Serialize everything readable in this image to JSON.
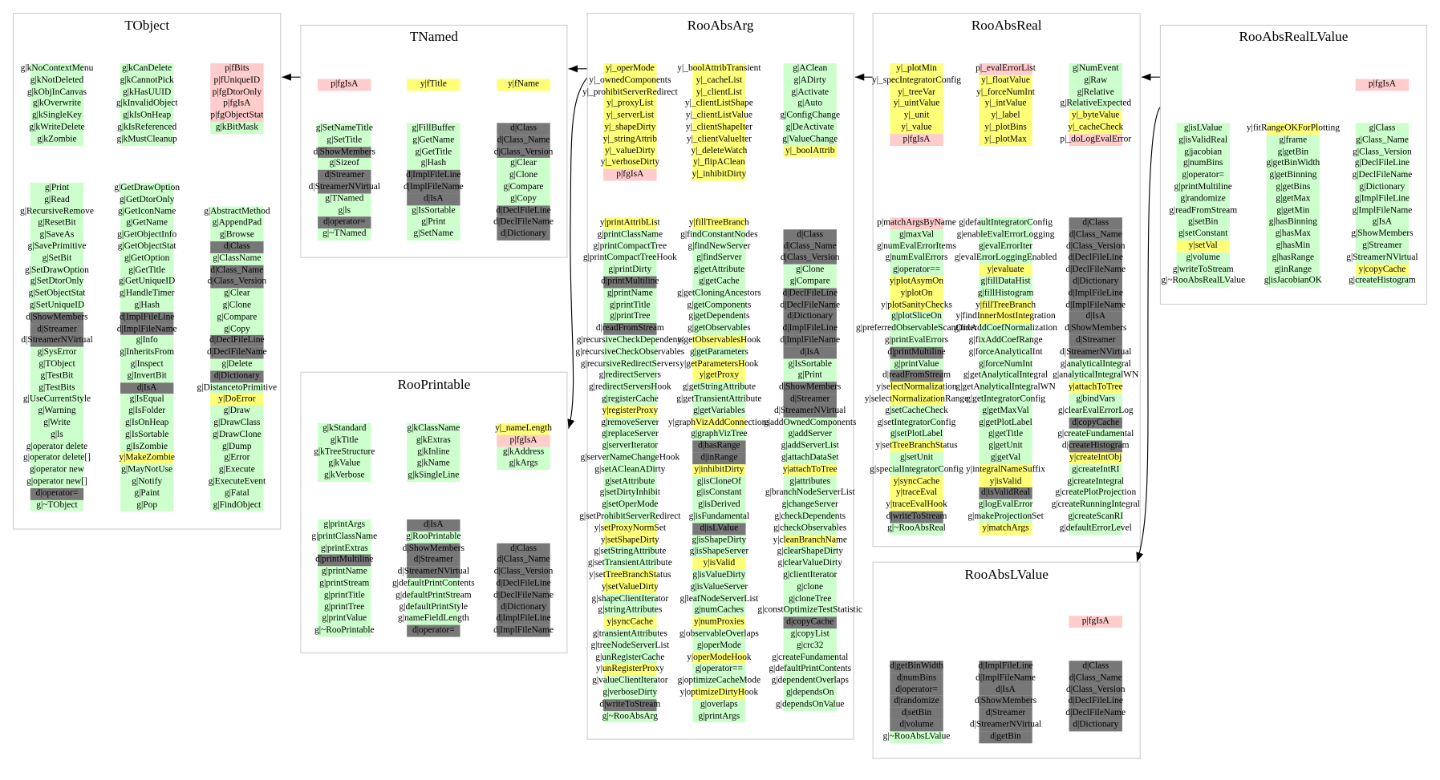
{
  "legend_colors": {
    "g": "#ccffcc",
    "y": "#ffff77",
    "p": "#ffcccc",
    "d": "#777777"
  },
  "classes": [
    {
      "title": "TObject",
      "groups": [
        {
          "cols": [
            [
              "g|kNoContextMenu",
              "g|kNotDeleted",
              "g|kObjInCanvas",
              "g|kOverwrite",
              "g|kSingleKey",
              "g|kWriteDelete",
              "g|kZombie"
            ],
            [
              "g|kCanDelete",
              "g|kCannotPick",
              "g|kHasUUID",
              "g|kInvalidObject",
              "g|kIsOnHeap",
              "g|kIsReferenced",
              "g|kMustCleanup"
            ],
            [
              "p|fBits",
              "p|fUniqueID",
              "p|fgDtorOnly",
              "p|fgIsA",
              "p|fgObjectStat",
              "g|kBitMask"
            ]
          ]
        },
        {
          "cols": [
            [
              "g|Print",
              "g|Read",
              "g|RecursiveRemove",
              "g|ResetBit",
              "g|SaveAs",
              "g|SavePrimitive",
              "g|SetBit",
              "g|SetDrawOption",
              "g|SetDtorOnly",
              "g|SetObjectStat",
              "g|SetUniqueID",
              "d|ShowMembers",
              "d|Streamer",
              "d|StreamerNVirtual",
              "g|SysError",
              "g|TObject",
              "g|TestBit",
              "g|TestBits",
              "g|UseCurrentStyle",
              "g|Warning",
              "g|Write",
              "g|ls",
              "g|operator delete",
              "g|operator delete[]",
              "g|operator new",
              "g|operator new[]",
              "d|operator=",
              "g|~TObject"
            ],
            [
              "g|GetDrawOption",
              "g|GetDtorOnly",
              "g|GetIconName",
              "g|GetName",
              "g|GetObjectInfo",
              "g|GetObjectStat",
              "g|GetOption",
              "g|GetTitle",
              "g|GetUniqueID",
              "g|HandleTimer",
              "g|Hash",
              "d|ImplFileLine",
              "d|ImplFileName",
              "g|Info",
              "g|InheritsFrom",
              "g|Inspect",
              "g|InvertBit",
              "d|IsA",
              "g|IsEqual",
              "g|IsFolder",
              "g|IsOnHeap",
              "g|IsSortable",
              "g|IsZombie",
              "y|MakeZombie",
              "g|MayNotUse",
              "g|Notify",
              "g|Paint",
              "g|Pop"
            ],
            [
              "g|AbstractMethod",
              "g|AppendPad",
              "g|Browse",
              "d|Class",
              "g|ClassName",
              "d|Class_Name",
              "d|Class_Version",
              "g|Clear",
              "g|Clone",
              "g|Compare",
              "g|Copy",
              "d|DeclFileLine",
              "d|DeclFileName",
              "g|Delete",
              "d|Dictionary",
              "g|DistancetoPrimitive",
              "y|DoError",
              "g|Draw",
              "g|DrawClass",
              "g|DrawClone",
              "g|Dump",
              "g|Error",
              "g|Execute",
              "g|ExecuteEvent",
              "g|Fatal",
              "g|FindObject"
            ]
          ]
        }
      ]
    },
    {
      "title": "TNamed",
      "groups": [
        {
          "cols": [
            [
              "p|fgIsA"
            ],
            [
              "y|fTitle"
            ],
            [
              "y|fName"
            ]
          ]
        },
        {
          "cols": [
            [
              "g|SetNameTitle",
              "g|SetTitle",
              "d|ShowMembers",
              "g|Sizeof",
              "d|Streamer",
              "d|StreamerNVirtual",
              "g|TNamed",
              "g|ls",
              "d|operator=",
              "g|~TNamed"
            ],
            [
              "g|FillBuffer",
              "g|GetName",
              "g|GetTitle",
              "g|Hash",
              "d|ImplFileLine",
              "d|ImplFileName",
              "d|IsA",
              "g|IsSortable",
              "g|Print",
              "g|SetName"
            ],
            [
              "d|Class",
              "d|Class_Name",
              "d|Class_Version",
              "g|Clear",
              "g|Clone",
              "g|Compare",
              "g|Copy",
              "d|DeclFileLine",
              "d|DeclFileName",
              "d|Dictionary"
            ]
          ]
        }
      ]
    },
    {
      "title": "RooPrintable",
      "groups": [
        {
          "cols": [
            [
              "g|kStandard",
              "g|kTitle",
              "g|kTreeStructure",
              "g|kValue",
              "g|kVerbose"
            ],
            [
              "g|kClassName",
              "g|kExtras",
              "g|kInline",
              "g|kName",
              "g|kSingleLine"
            ],
            [
              "y|_nameLength",
              "p|fgIsA",
              "g|kAddress",
              "g|kArgs"
            ]
          ]
        },
        {
          "cols": [
            [
              "g|printArgs",
              "g|printClassName",
              "g|printExtras",
              "d|printMultiline",
              "g|printName",
              "g|printStream",
              "g|printTitle",
              "g|printTree",
              "g|printValue",
              "g|~RooPrintable"
            ],
            [
              "d|IsA",
              "g|RooPrintable",
              "d|ShowMembers",
              "d|Streamer",
              "d|StreamerNVirtual",
              "g|defaultPrintContents",
              "g|defaultPrintStream",
              "g|defaultPrintStyle",
              "g|nameFieldLength",
              "d|operator="
            ],
            [
              "d|Class",
              "d|Class_Name",
              "d|Class_Version",
              "d|DeclFileLine",
              "d|DeclFileName",
              "d|Dictionary",
              "d|ImplFileLine",
              "d|ImplFileName"
            ]
          ]
        }
      ]
    },
    {
      "title": "RooAbsArg",
      "groups": [
        {
          "cols": [
            [
              "y|_operMode",
              "y|_ownedComponents",
              "y|_prohibitServerRedirect",
              "y|_proxyList",
              "y|_serverList",
              "y|_shapeDirty",
              "y|_stringAttrib",
              "y|_valueDirty",
              "y|_verboseDirty",
              "p|fgIsA"
            ],
            [
              "y|_boolAttribTransient",
              "y|_cacheList",
              "y|_clientList",
              "y|_clientListShape",
              "y|_clientListValue",
              "y|_clientShapeIter",
              "y|_clientValueIter",
              "y|_deleteWatch",
              "y|_flipAClean",
              "y|_inhibitDirty"
            ],
            [
              "g|AClean",
              "g|ADirty",
              "g|Activate",
              "g|Auto",
              "g|ConfigChange",
              "g|DeActivate",
              "g|ValueChange",
              "y|_boolAttrib"
            ]
          ]
        },
        {
          "cols": [
            [
              "y|printAttribList",
              "g|printClassName",
              "g|printCompactTree",
              "g|printCompactTreeHook",
              "g|printDirty",
              "d|printMultiline",
              "g|printName",
              "g|printTitle",
              "g|printTree",
              "d|readFromStream",
              "g|recursiveCheckDependents",
              "g|recursiveCheckObservables",
              "g|recursiveRedirectServers",
              "g|redirectServers",
              "g|redirectServersHook",
              "g|registerCache",
              "y|registerProxy",
              "g|removeServer",
              "g|replaceServer",
              "g|serverIterator",
              "g|serverNameChangeHook",
              "g|setACleanADirty",
              "g|setAttribute",
              "g|setDirtyInhibit",
              "g|setOperMode",
              "g|setProhibitServerRedirect",
              "y|setProxyNormSet",
              "y|setShapeDirty",
              "g|setStringAttribute",
              "g|setTransientAttribute",
              "y|setTreeBranchStatus",
              "y|setValueDirty",
              "g|shapeClientIterator",
              "g|stringAttributes",
              "y|syncCache",
              "g|transientAttributes",
              "g|treeNodeServerList",
              "g|unRegisterCache",
              "y|unRegisterProxy",
              "g|valueClientIterator",
              "g|verboseDirty",
              "d|writeToStream",
              "g|~RooAbsArg"
            ],
            [
              "y|fillTreeBranch",
              "g|findConstantNodes",
              "g|findNewServer",
              "g|findServer",
              "g|getAttribute",
              "g|getCache",
              "g|getCloningAncestors",
              "g|getComponents",
              "g|getDependents",
              "g|getObservables",
              "y|getObservablesHook",
              "g|getParameters",
              "y|getParametersHook",
              "y|getProxy",
              "g|getStringAttribute",
              "g|getTransientAttribute",
              "g|getVariables",
              "y|graphVizAddConnections",
              "g|graphVizTree",
              "d|hasRange",
              "d|inRange",
              "y|inhibitDirty",
              "g|isCloneOf",
              "g|isConstant",
              "g|isDerived",
              "g|isFundamental",
              "d|isLValue",
              "g|isShapeDirty",
              "g|isShapeServer",
              "y|isValid",
              "g|isValueDirty",
              "g|isValueServer",
              "g|leafNodeServerList",
              "g|numCaches",
              "y|numProxies",
              "g|observableOverlaps",
              "g|operMode",
              "y|operModeHook",
              "g|operator==",
              "g|optimizeCacheMode",
              "y|optimizeDirtyHook",
              "g|overlaps",
              "g|printArgs"
            ],
            [
              "d|Class",
              "d|Class_Name",
              "d|Class_Version",
              "g|Clone",
              "g|Compare",
              "d|DeclFileLine",
              "d|DeclFileName",
              "d|Dictionary",
              "d|ImplFileLine",
              "d|ImplFileName",
              "d|IsA",
              "g|IsSortable",
              "g|Print",
              "d|ShowMembers",
              "d|Streamer",
              "d|StreamerNVirtual",
              "g|addOwnedComponents",
              "g|addServer",
              "g|addServerList",
              "g|attachDataSet",
              "y|attachToTree",
              "g|attributes",
              "g|branchNodeServerList",
              "g|changeServer",
              "g|checkDependents",
              "g|checkObservables",
              "y|cleanBranchName",
              "g|clearShapeDirty",
              "g|clearValueDirty",
              "g|clientIterator",
              "g|clone",
              "g|cloneTree",
              "g|constOptimizeTestStatistic",
              "d|copyCache",
              "g|copyList",
              "g|crc32",
              "g|createFundamental",
              "g|defaultPrintContents",
              "g|dependentOverlaps",
              "g|dependsOn",
              "g|dependsOnValue"
            ]
          ]
        }
      ]
    },
    {
      "title": "RooAbsReal",
      "groups": [
        {
          "cols": [
            [
              "y|_plotMin",
              "y|_specIntegratorConfig",
              "y|_treeVar",
              "y|_uintValue",
              "y|_unit",
              "y|_value",
              "p|fgIsA"
            ],
            [
              "p|_evalErrorList",
              "y|_floatValue",
              "y|_forceNumInt",
              "y|_intValue",
              "y|_label",
              "y|_plotBins",
              "y|_plotMax"
            ],
            [
              "g|NumEvent",
              "g|Raw",
              "g|Relative",
              "g|RelativeExpected",
              "y|_byteValue",
              "y|_cacheCheck",
              "p|_doLogEvalError"
            ]
          ]
        },
        {
          "cols": [
            [
              "p|matchArgsByName",
              "g|maxVal",
              "g|numEvalErrorItems",
              "g|numEvalErrors",
              "g|operator==",
              "y|plotAsymOn",
              "y|plotOn",
              "y|plotSanityChecks",
              "g|plotSliceOn",
              "g|preferredObservableScanOrder",
              "g|printEvalErrors",
              "d|printMultiline",
              "g|printValue",
              "d|readFromStream",
              "y|selectNormalization",
              "y|selectNormalizationRange",
              "g|setCacheCheck",
              "g|setIntegratorConfig",
              "g|setPlotLabel",
              "y|setTreeBranchStatus",
              "g|setUnit",
              "g|specialIntegratorConfig",
              "y|syncCache",
              "y|traceEval",
              "y|traceEvalHook",
              "d|writeToStream",
              "g|~RooAbsReal"
            ],
            [
              "g|defaultIntegratorConfig",
              "g|enableEvalErrorLogging",
              "g|evalErrorIter",
              "g|evalErrorLoggingEnabled",
              "y|evaluate",
              "g|fillDataHist",
              "g|fillHistogram",
              "y|fillTreeBranch",
              "y|findInnerMostIntegration",
              "g|fixAddCoefNormalization",
              "g|fixAddCoefRange",
              "g|forceAnalyticalInt",
              "g|forceNumInt",
              "g|getAnalyticalIntegral",
              "g|getAnalyticalIntegralWN",
              "g|getIntegratorConfig",
              "g|getMaxVal",
              "g|getPlotLabel",
              "g|getTitle",
              "g|getUnit",
              "g|getVal",
              "y|integralNameSuffix",
              "y|isValid",
              "d|isValidReal",
              "g|logEvalError",
              "g|makeProjectionSet",
              "y|matchArgs"
            ],
            [
              "d|Class",
              "d|Class_Name",
              "d|Class_Version",
              "d|DeclFileLine",
              "d|DeclFileName",
              "d|Dictionary",
              "d|ImplFileLine",
              "d|ImplFileName",
              "d|IsA",
              "d|ShowMembers",
              "d|Streamer",
              "d|StreamerNVirtual",
              "g|analyticalIntegral",
              "g|analyticalIntegralWN",
              "y|attachToTree",
              "g|bindVars",
              "g|clearEvalErrorLog",
              "d|copyCache",
              "g|createFundamental",
              "d|createHistogram",
              "y|createIntObj",
              "g|createIntRI",
              "g|createIntegral",
              "g|createPlotProjection",
              "g|createRunningIntegral",
              "g|createScanRI",
              "g|defaultErrorLevel"
            ]
          ]
        }
      ]
    },
    {
      "title": "RooAbsRealLValue",
      "groups": [
        {
          "cols": [
            [],
            [],
            [
              "p|fgIsA"
            ]
          ]
        },
        {
          "cols": [
            [
              "g|isLValue",
              "g|isValidReal",
              "g|jacobian",
              "g|numBins",
              "g|operator=",
              "g|printMultiline",
              "g|randomize",
              "g|readFromStream",
              "g|setBin",
              "g|setConstant",
              "y|setVal",
              "g|volume",
              "g|writeToStream",
              "g|~RooAbsRealLValue"
            ],
            [
              "y|fitRangeOKForPlotting",
              "g|frame",
              "g|getBin",
              "g|getBinWidth",
              "g|getBinning",
              "g|getBins",
              "g|getMax",
              "g|getMin",
              "g|hasBinning",
              "g|hasMax",
              "g|hasMin",
              "g|hasRange",
              "g|inRange",
              "g|isJacobianOK"
            ],
            [
              "g|Class",
              "g|Class_Name",
              "g|Class_Version",
              "g|DeclFileLine",
              "g|DeclFileName",
              "g|Dictionary",
              "g|ImplFileLine",
              "g|ImplFileName",
              "g|IsA",
              "g|ShowMembers",
              "g|Streamer",
              "g|StreamerNVirtual",
              "y|copyCache",
              "g|createHistogram"
            ]
          ]
        }
      ]
    },
    {
      "title": "RooAbsLValue",
      "groups": [
        {
          "cols": [
            [],
            [],
            [
              "p|fgIsA"
            ]
          ]
        },
        {
          "cols": [
            [
              "d|getBinWidth",
              "d|numBins",
              "d|operator=",
              "d|randomize",
              "d|setBin",
              "d|volume",
              "g|~RooAbsLValue"
            ],
            [
              "d|ImplFileLine",
              "d|ImplFileName",
              "d|IsA",
              "d|ShowMembers",
              "d|Streamer",
              "d|StreamerNVirtual",
              "d|getBin"
            ],
            [
              "d|Class",
              "d|Class_Name",
              "d|Class_Version",
              "d|DeclFileLine",
              "d|DeclFileName",
              "d|Dictionary"
            ]
          ]
        }
      ]
    }
  ]
}
